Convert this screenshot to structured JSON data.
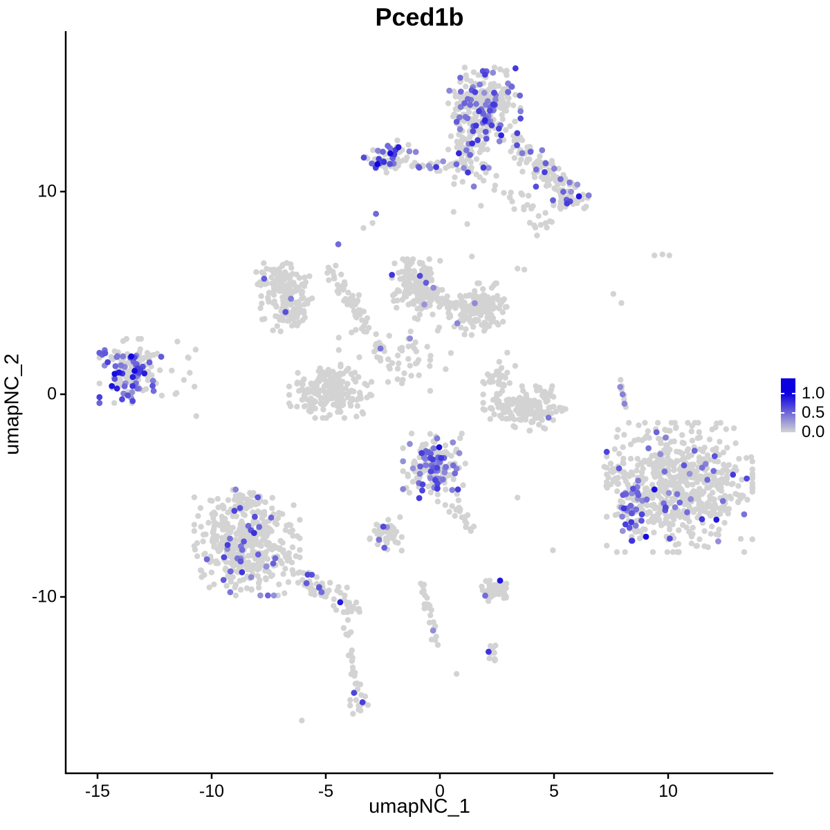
{
  "chart_data": {
    "type": "scatter",
    "title": "Pced1b",
    "xlabel": "umapNC_1",
    "ylabel": "umapNC_2",
    "x_ticks": [
      -15,
      -10,
      -5,
      0,
      5,
      10
    ],
    "y_ticks": [
      10,
      0,
      -10
    ],
    "xlim": [
      -16.4,
      14.6
    ],
    "ylim": [
      -18.7,
      17.9
    ],
    "grid": false,
    "point_color_low": "#d3d3d3",
    "point_color_high": "#0d00e0",
    "axis_color": "#000000",
    "legend": {
      "position": "right",
      "tick_labels": [
        "1.0",
        "0.5",
        "0.0"
      ],
      "tick_values": [
        1.0,
        0.5,
        0.0
      ],
      "max_value": 1.4,
      "low_color": "#d3d3d3",
      "high_color": "#0d00e0"
    },
    "clusters": [
      {
        "name": "top-main",
        "type": "blob",
        "cx": 1.95,
        "cy": 14.1,
        "sx": 0.72,
        "sy": 0.92,
        "n": 265,
        "frac": 0.32
      },
      {
        "name": "top-main-neck",
        "type": "blob",
        "cx": 1.3,
        "cy": 11.9,
        "sx": 0.38,
        "sy": 0.75,
        "n": 70,
        "frac": 0.22
      },
      {
        "name": "top-left-sub",
        "type": "blob",
        "cx": -2.2,
        "cy": 11.6,
        "sx": 0.52,
        "sy": 0.42,
        "n": 60,
        "frac": 0.3
      },
      {
        "name": "top-bridge",
        "type": "segment",
        "x1": -1.3,
        "y1": 11.35,
        "x2": 0.7,
        "y2": 11.15,
        "jitter": 0.22,
        "n": 26,
        "frac": 0.15
      },
      {
        "name": "top-right-arm",
        "type": "segment",
        "x1": 3.2,
        "y1": 12.4,
        "x2": 6.0,
        "y2": 9.6,
        "jitter": 0.5,
        "n": 115,
        "frac": 0.1
      },
      {
        "name": "top-right-arm-end",
        "type": "blob",
        "cx": 5.75,
        "cy": 9.5,
        "sx": 0.35,
        "sy": 0.33,
        "n": 26,
        "frac": 0.1
      },
      {
        "name": "top-right-scatter",
        "type": "segment",
        "x1": 2.6,
        "y1": 10.4,
        "x2": 4.6,
        "y2": 8.3,
        "jitter": 0.55,
        "n": 28,
        "frac": 0.03
      },
      {
        "name": "mid-left-upper",
        "type": "blob",
        "cx": -6.9,
        "cy": 5.5,
        "sx": 0.58,
        "sy": 0.48,
        "n": 95,
        "frac": 0.01
      },
      {
        "name": "mid-left-lower",
        "type": "blob",
        "cx": -6.65,
        "cy": 4.2,
        "sx": 0.55,
        "sy": 0.5,
        "n": 85,
        "frac": 0.01
      },
      {
        "name": "mid-left-arm",
        "type": "segment",
        "x1": -4.9,
        "y1": 6.3,
        "x2": -3.0,
        "y2": 3.0,
        "jitter": 0.28,
        "n": 55,
        "frac": 0.0
      },
      {
        "name": "center-lobe-left",
        "type": "blob",
        "cx": -1.0,
        "cy": 5.3,
        "sx": 0.5,
        "sy": 0.62,
        "n": 150,
        "frac": 0.04
      },
      {
        "name": "center-lobe-right",
        "type": "blob",
        "cx": 1.7,
        "cy": 4.2,
        "sx": 0.6,
        "sy": 0.58,
        "n": 165,
        "frac": 0.025
      },
      {
        "name": "center-lobe-bridge",
        "type": "segment",
        "x1": -0.3,
        "y1": 4.7,
        "x2": 0.8,
        "y2": 4.45,
        "jitter": 0.3,
        "n": 25,
        "frac": 0.0
      },
      {
        "name": "left-cluster",
        "type": "blob",
        "cx": -13.55,
        "cy": 1.15,
        "sx": 0.62,
        "sy": 0.72,
        "n": 145,
        "frac": 0.36
      },
      {
        "name": "left-cluster-outliers",
        "type": "blob",
        "cx": -11.4,
        "cy": 0.9,
        "sx": 0.55,
        "sy": 0.95,
        "n": 9,
        "frac": 0.0
      },
      {
        "name": "mid-crescent",
        "type": "blob",
        "cx": -4.8,
        "cy": 0.15,
        "sx": 0.82,
        "sy": 0.6,
        "n": 190,
        "frac": 0.015
      },
      {
        "name": "center-cross-scatter",
        "type": "blob",
        "cx": -1.9,
        "cy": 2.0,
        "sx": 1.15,
        "sy": 0.85,
        "n": 65,
        "frac": 0.03
      },
      {
        "name": "right-crescent",
        "type": "blob",
        "cx": 3.7,
        "cy": -0.7,
        "sx": 0.82,
        "sy": 0.5,
        "n": 160,
        "frac": 0.006
      },
      {
        "name": "right-crescent-cap",
        "type": "blob",
        "cx": 2.55,
        "cy": 0.75,
        "sx": 0.3,
        "sy": 0.33,
        "n": 28,
        "frac": 0.0
      },
      {
        "name": "center-bottom-cluster",
        "type": "blob",
        "cx": -0.25,
        "cy": -3.65,
        "sx": 0.62,
        "sy": 0.78,
        "n": 175,
        "frac": 0.28
      },
      {
        "name": "center-bottom-tail",
        "type": "segment",
        "x1": 0.45,
        "y1": -5.3,
        "x2": 1.35,
        "y2": -6.5,
        "jitter": 0.25,
        "n": 22,
        "frac": 0.05
      },
      {
        "name": "small-mid-cluster",
        "type": "blob",
        "cx": -2.4,
        "cy": -6.9,
        "sx": 0.33,
        "sy": 0.38,
        "n": 48,
        "frac": 0.06
      },
      {
        "name": "bottom-left-cluster",
        "type": "blob",
        "cx": -8.45,
        "cy": -7.4,
        "sx": 1.05,
        "sy": 1.15,
        "n": 430,
        "frac": 0.085
      },
      {
        "name": "bottom-left-tip",
        "type": "blob",
        "cx": -8.75,
        "cy": -5.3,
        "sx": 0.35,
        "sy": 0.33,
        "n": 30,
        "frac": 0.1
      },
      {
        "name": "bottom-left-arm",
        "type": "segment",
        "x1": -6.3,
        "y1": -8.8,
        "x2": -3.6,
        "y2": -10.8,
        "jitter": 0.4,
        "n": 75,
        "frac": 0.09
      },
      {
        "name": "bottom-trail-left",
        "type": "segment",
        "x1": -4.15,
        "y1": -11.35,
        "x2": -3.6,
        "y2": -14.5,
        "jitter": 0.14,
        "n": 20,
        "frac": 0.05
      },
      {
        "name": "bottom-trail-left-end",
        "type": "blob",
        "cx": -3.45,
        "cy": -15.1,
        "sx": 0.22,
        "sy": 0.38,
        "n": 16,
        "frac": 0.12
      },
      {
        "name": "bottom-trail-center",
        "type": "segment",
        "x1": -0.8,
        "y1": -9.25,
        "x2": -0.15,
        "y2": -12.3,
        "jitter": 0.15,
        "n": 26,
        "frac": 0.05
      },
      {
        "name": "bottom-small-cluster",
        "type": "blob",
        "cx": 2.35,
        "cy": -9.7,
        "sx": 0.38,
        "sy": 0.23,
        "n": 52,
        "frac": 0.03
      },
      {
        "name": "bottom-small-shape",
        "type": "blob",
        "cx": 2.3,
        "cy": -12.7,
        "sx": 0.2,
        "sy": 0.28,
        "n": 13,
        "frac": 0.1
      },
      {
        "name": "right-cluster",
        "type": "blob",
        "cx": 10.5,
        "cy": -4.6,
        "sx": 1.45,
        "sy": 1.45,
        "n": 640,
        "frac": 0.06
      },
      {
        "name": "right-cluster-left-edge",
        "type": "blob",
        "cx": 8.5,
        "cy": -5.8,
        "sx": 0.3,
        "sy": 0.65,
        "n": 42,
        "frac": 0.42
      },
      {
        "name": "right-cluster-protrusion",
        "type": "blob",
        "cx": 7.75,
        "cy": -4.0,
        "sx": 0.25,
        "sy": 0.4,
        "n": 20,
        "frac": 0.1
      },
      {
        "name": "right-mini-trail",
        "type": "segment",
        "x1": 7.85,
        "y1": 0.8,
        "x2": 8.15,
        "y2": -0.7,
        "jitter": 0.1,
        "n": 9,
        "frac": 0.12
      }
    ],
    "sparse_points": [
      [
        -2.8,
        8.9,
        0.5
      ],
      [
        -2.95,
        8.45,
        0
      ],
      [
        -3.35,
        8.2,
        0
      ],
      [
        -4.45,
        7.4,
        0.5
      ],
      [
        -7.7,
        5.7,
        0.55
      ],
      [
        9.4,
        6.85,
        0
      ],
      [
        9.75,
        6.9,
        0
      ],
      [
        10.05,
        6.85,
        0
      ],
      [
        7.6,
        4.95,
        0
      ],
      [
        7.95,
        4.5,
        0
      ],
      [
        3.4,
        6.2,
        0
      ],
      [
        3.7,
        6.15,
        0
      ],
      [
        1.4,
        6.8,
        0
      ],
      [
        0.6,
        9.0,
        0
      ],
      [
        1.2,
        8.4,
        0
      ],
      [
        1.8,
        9.3,
        0
      ],
      [
        -11.5,
        2.6,
        0
      ],
      [
        -10.7,
        2.2,
        0
      ],
      [
        4.95,
        -7.7,
        0
      ],
      [
        3.4,
        -5.1,
        0
      ],
      [
        0.73,
        -13.8,
        0
      ],
      [
        -6.05,
        -16.1,
        0
      ],
      [
        7.8,
        -1.75,
        0
      ],
      [
        2.6,
        1.6,
        0
      ],
      [
        2.95,
        2.05,
        0
      ],
      [
        3.3,
        1.4,
        0
      ]
    ]
  }
}
